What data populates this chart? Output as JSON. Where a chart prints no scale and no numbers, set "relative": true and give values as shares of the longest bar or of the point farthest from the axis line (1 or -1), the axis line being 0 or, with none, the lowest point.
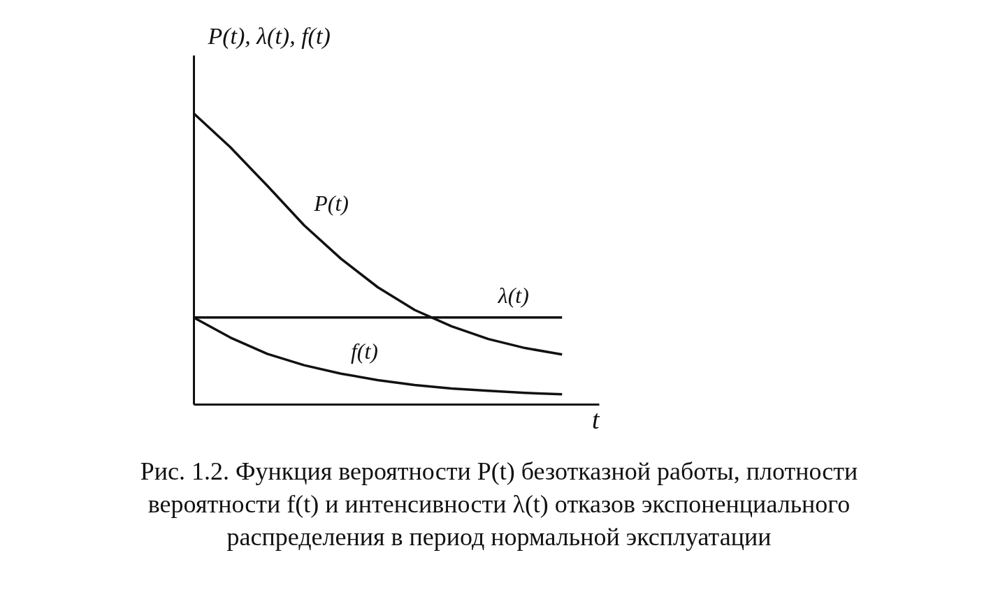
{
  "chart_data": {
    "type": "line",
    "relative": true,
    "ylabel": "P(t), λ(t), f(t)",
    "xlabel": "t",
    "categories": [
      null,
      null,
      null,
      null,
      null,
      null,
      null,
      null,
      null,
      null,
      null
    ],
    "series": [
      {
        "name": "P(t)",
        "color": "#111111",
        "values": [
          1.0,
          0.883,
          0.751,
          0.615,
          0.5,
          0.402,
          0.324,
          0.268,
          0.224,
          0.193,
          0.171
        ]
      },
      {
        "name": "λ(t)",
        "color": "#111111",
        "values": [
          0.298,
          0.298,
          0.298,
          0.298,
          0.298,
          0.298,
          0.298,
          0.298,
          0.298,
          0.298,
          0.298
        ]
      },
      {
        "name": "f(t)",
        "color": "#111111",
        "values": [
          0.298,
          0.229,
          0.173,
          0.134,
          0.105,
          0.083,
          0.066,
          0.054,
          0.046,
          0.039,
          0.034
        ]
      }
    ],
    "annotations": [
      "Рис. 1.2. Функция вероятности P(t) безотказной работы, плотности вероятности f(t) и интенсивности λ(t) отказов экспоненциального распределения в период нормальной эксплуатации"
    ],
    "legend": false,
    "marker": "none",
    "line_style": "solid"
  }
}
